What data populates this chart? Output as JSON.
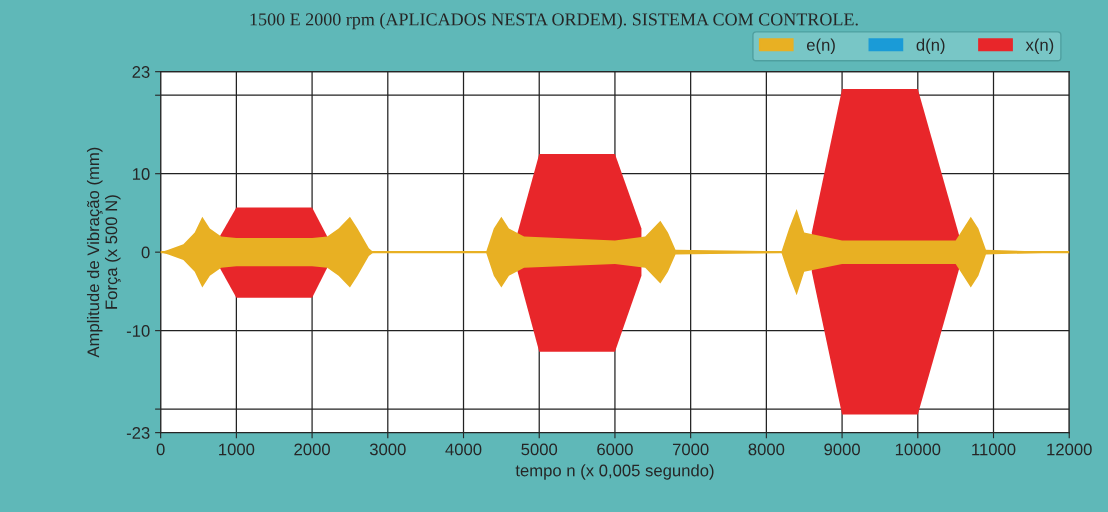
{
  "chart_data": {
    "type": "line",
    "title": "1500 E 2000 rpm (APLICADOS NESTA ORDEM). SISTEMA COM CONTROLE.",
    "xlabel": "tempo n (x 0,005 segundo)",
    "ylabel": "Amplitude de Vibração (mm)\nForça (x 500 N)",
    "series": [
      {
        "name": "e(n)",
        "color": "#e8b023",
        "x": [
          0,
          100,
          300,
          450,
          550,
          650,
          800,
          1000,
          2000,
          2200,
          2350,
          2500,
          2600,
          2750,
          2800,
          4300,
          4400,
          4500,
          4600,
          4800,
          6000,
          6400,
          6600,
          6700,
          6800,
          8200,
          8300,
          8400,
          8500,
          9000,
          10500,
          10700,
          10800,
          10900,
          12000
        ],
        "values": [
          0,
          0,
          0,
          0,
          0,
          0,
          0,
          0,
          0,
          0,
          0,
          0,
          0,
          0,
          0,
          0,
          0,
          0,
          0,
          0,
          0,
          0,
          0,
          0,
          0,
          0,
          0,
          0,
          0,
          0,
          0,
          0,
          0,
          0,
          0
        ],
        "upper": [
          0,
          0.3,
          1,
          2.5,
          4.5,
          3,
          2,
          1.8,
          1.8,
          2,
          3,
          4.5,
          3,
          0.5,
          0.1,
          0.1,
          3,
          4.5,
          3,
          2,
          1.5,
          2,
          4,
          2.5,
          0.3,
          0.1,
          3,
          5.5,
          2.5,
          1.5,
          1.5,
          4.5,
          3,
          0.3,
          0
        ],
        "lower": [
          0,
          -0.3,
          -1,
          -2.5,
          -4.5,
          -3,
          -2,
          -1.8,
          -1.8,
          -2,
          -3,
          -4.5,
          -3,
          -0.5,
          -0.1,
          -0.1,
          -3,
          -4.5,
          -3,
          -2,
          -1.5,
          -2,
          -4,
          -2.5,
          -0.3,
          -0.1,
          -3,
          -5.5,
          -2.5,
          -1.5,
          -1.5,
          -4.5,
          -3,
          -0.3,
          0
        ]
      },
      {
        "name": "d(n)",
        "color": "#1a9bd7"
      },
      {
        "name": "x(n)",
        "color": "#e8262a",
        "x": [
          780,
          1000,
          2000,
          2200,
          3000,
          4700,
          5000,
          6000,
          6350,
          7500,
          8600,
          9000,
          10000,
          10550
        ],
        "values": [
          null,
          null,
          null,
          null,
          null,
          null,
          null,
          null,
          null,
          null,
          null,
          null,
          null,
          null
        ],
        "upper": [
          2,
          5.7,
          5.7,
          2,
          null,
          2,
          12.5,
          12.5,
          3,
          null,
          2.5,
          20.8,
          20.8,
          2
        ],
        "lower": [
          -2,
          -5.8,
          -5.8,
          -2,
          null,
          -2,
          -12.7,
          -12.7,
          -3,
          null,
          -2.5,
          -20.7,
          -20.7,
          -2
        ]
      }
    ],
    "xlim": [
      0,
      12000
    ],
    "xticks": [
      0,
      1000,
      2000,
      3000,
      4000,
      5000,
      6000,
      7000,
      8000,
      9000,
      10000,
      11000,
      12000
    ],
    "ylim": [
      -23,
      23
    ],
    "yticks": [
      {
        "value": -23,
        "label": "-23"
      },
      {
        "value": -20,
        "label": null
      },
      -10,
      0,
      10,
      {
        "value": 20,
        "label": null
      },
      23
    ],
    "grid": true,
    "legend": "top right"
  }
}
